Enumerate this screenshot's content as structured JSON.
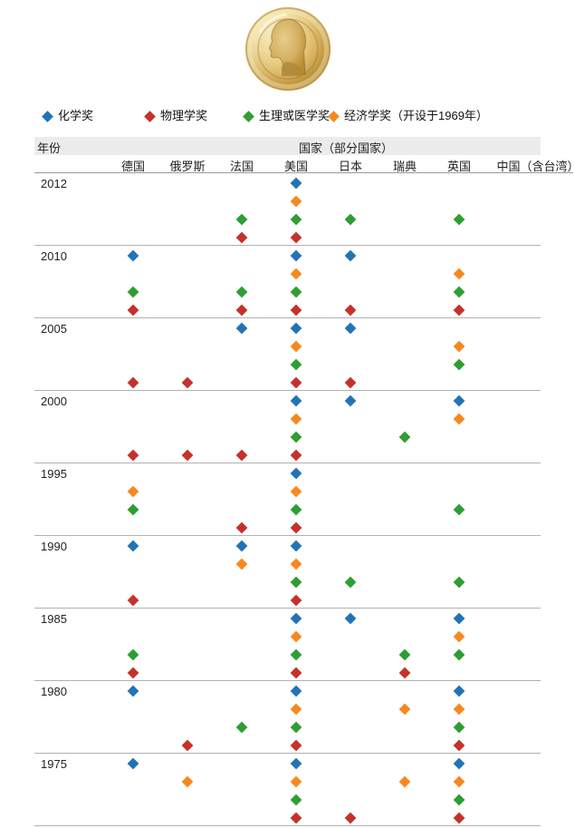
{
  "medal": {
    "name": "nobel-medal",
    "rim_color": "#b9892f",
    "face_color": "#efd99c",
    "profile_color": "#c9a258"
  },
  "legend": {
    "items": [
      {
        "key": "chemistry",
        "label": "化学奖",
        "color": "#2273b6"
      },
      {
        "key": "physics",
        "label": "物理学奖",
        "color": "#c5312d"
      },
      {
        "key": "medicine",
        "label": "生理或医学奖",
        "color": "#2e9e33"
      },
      {
        "key": "economics",
        "label": "经济学奖（开设于1969年）",
        "color": "#f6891e"
      }
    ]
  },
  "header": {
    "year_label": "年份",
    "country_group_label": "国家（部分国家）"
  },
  "columns": [
    "德国",
    "俄罗斯",
    "法国",
    "美国",
    "日本",
    "瑞典",
    "英国",
    "中国（含台湾）"
  ],
  "chart_data": {
    "type": "scatter",
    "title": "",
    "x_categories": [
      "德国",
      "俄罗斯",
      "法国",
      "美国",
      "日本",
      "瑞典",
      "英国",
      "中国（含台湾）"
    ],
    "y_categories": [
      "2012",
      "2010",
      "2005",
      "2000",
      "1995",
      "1990",
      "1985",
      "1980",
      "1975"
    ],
    "row_order_per_block": [
      "chemistry",
      "economics",
      "medicine",
      "physics"
    ],
    "blocks": [
      {
        "year": "2012",
        "chemistry": [
          "美国"
        ],
        "economics": [
          "美国"
        ],
        "medicine": [
          "法国",
          "美国",
          "日本",
          "英国"
        ],
        "physics": [
          "法国",
          "美国"
        ]
      },
      {
        "year": "2010",
        "chemistry": [
          "德国",
          "美国",
          "日本"
        ],
        "economics": [
          "美国",
          "英国"
        ],
        "medicine": [
          "德国",
          "法国",
          "美国",
          "英国"
        ],
        "physics": [
          "德国",
          "法国",
          "美国",
          "日本",
          "英国"
        ]
      },
      {
        "year": "2005",
        "chemistry": [
          "法国",
          "美国",
          "日本"
        ],
        "economics": [
          "美国",
          "英国"
        ],
        "medicine": [
          "美国",
          "英国"
        ],
        "physics": [
          "德国",
          "俄罗斯",
          "美国",
          "日本"
        ]
      },
      {
        "year": "2000",
        "chemistry": [
          "美国",
          "日本",
          "英国"
        ],
        "economics": [
          "美国",
          "英国"
        ],
        "medicine": [
          "美国",
          "瑞典"
        ],
        "physics": [
          "德国",
          "俄罗斯",
          "法国",
          "美国"
        ]
      },
      {
        "year": "1995",
        "chemistry": [
          "美国"
        ],
        "economics": [
          "德国",
          "美国"
        ],
        "medicine": [
          "德国",
          "美国",
          "英国"
        ],
        "physics": [
          "法国",
          "美国"
        ]
      },
      {
        "year": "1990",
        "chemistry": [
          "德国",
          "法国",
          "美国"
        ],
        "economics": [
          "法国",
          "美国"
        ],
        "medicine": [
          "美国",
          "日本",
          "英国"
        ],
        "physics": [
          "德国",
          "美国"
        ]
      },
      {
        "year": "1985",
        "chemistry": [
          "美国",
          "日本",
          "英国"
        ],
        "economics": [
          "美国",
          "英国"
        ],
        "medicine": [
          "德国",
          "美国",
          "瑞典",
          "英国"
        ],
        "physics": [
          "德国",
          "美国",
          "瑞典"
        ]
      },
      {
        "year": "1980",
        "chemistry": [
          "德国",
          "美国",
          "英国"
        ],
        "economics": [
          "美国",
          "瑞典",
          "英国"
        ],
        "medicine": [
          "法国",
          "美国",
          "英国"
        ],
        "physics": [
          "俄罗斯",
          "美国",
          "英国"
        ]
      },
      {
        "year": "1975",
        "chemistry": [
          "德国",
          "美国",
          "英国"
        ],
        "economics": [
          "俄罗斯",
          "美国",
          "瑞典",
          "英国"
        ],
        "medicine": [
          "美国",
          "英国"
        ],
        "physics": [
          "美国",
          "日本",
          "英国"
        ]
      }
    ]
  }
}
